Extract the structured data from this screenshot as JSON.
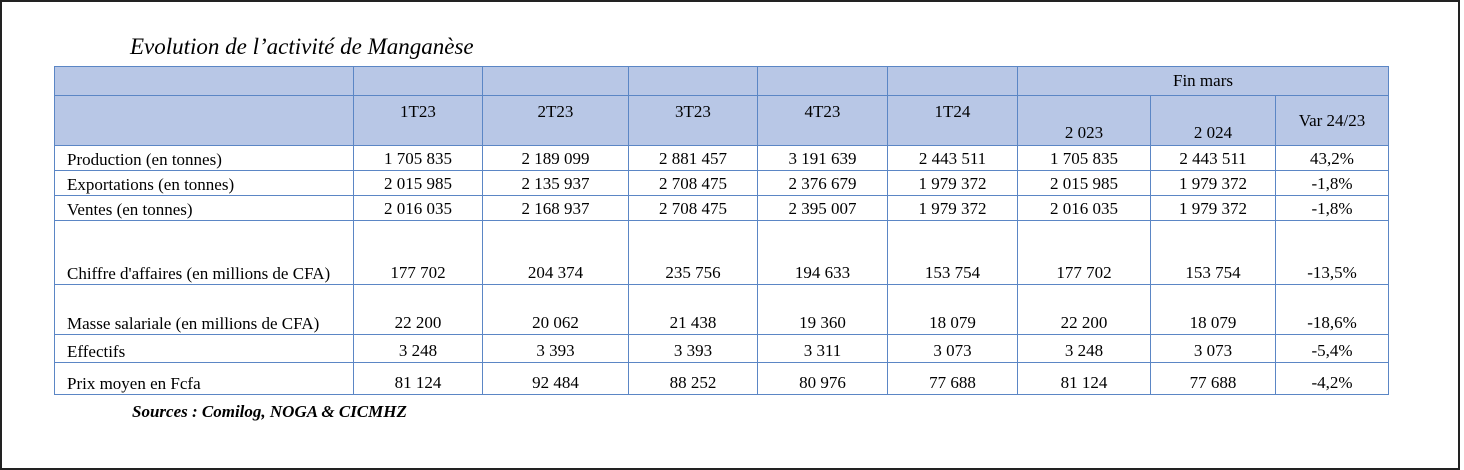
{
  "title": "Evolution de l’activité de Manganèse",
  "table": {
    "group_header": "Fin mars",
    "columns": [
      "1T23",
      "2T23",
      "3T23",
      "4T23",
      "1T24",
      "2 023",
      "2 024",
      "Var 24/23"
    ],
    "rows": [
      [
        "Production (en tonnes)",
        "1 705 835",
        "2 189 099",
        "2 881 457",
        "3 191 639",
        "2 443 511",
        "1 705 835",
        "2 443 511",
        "43,2%"
      ],
      [
        "Exportations (en tonnes)",
        "2 015 985",
        "2 135 937",
        "2 708 475",
        "2 376 679",
        "1 979 372",
        "2 015 985",
        "1 979 372",
        "-1,8%"
      ],
      [
        "Ventes (en tonnes)",
        "2 016 035",
        "2 168 937",
        "2 708 475",
        "2 395 007",
        "1 979 372",
        "2 016 035",
        "1 979 372",
        "-1,8%"
      ],
      [
        "Chiffre d'affaires (en millions de CFA)",
        "177 702",
        "204 374",
        "235 756",
        "194 633",
        "153 754",
        "177 702",
        "153 754",
        "-13,5%"
      ],
      [
        "Masse salariale (en millions de CFA)",
        "22 200",
        "20 062",
        "21 438",
        "19 360",
        "18 079",
        "22 200",
        "18 079",
        "-18,6%"
      ],
      [
        "Effectifs",
        "3 248",
        "3 393",
        "3 393",
        "3 311",
        "3 073",
        "3 248",
        "3 073",
        "-5,4%"
      ],
      [
        "Prix moyen en Fcfa",
        "81 124",
        "92 484",
        "88 252",
        "80 976",
        "77 688",
        "81 124",
        "77 688",
        "-4,2%"
      ]
    ]
  },
  "source": "Sources : Comilog, NOGA & CICMHZ"
}
